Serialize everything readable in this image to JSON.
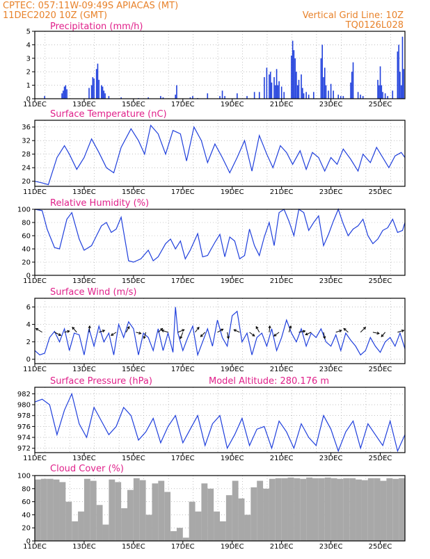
{
  "header": {
    "station": "CPTEC:   057:11W-09:49S   APIACAS (MT)",
    "run": "11DEC2020  10Z  (GMT)",
    "grid_note": "Vertical Grid Line: 10Z",
    "model": "TQ0126L028"
  },
  "x_ticks": [
    "11DEC",
    "13DEC",
    "15DEC",
    "17DEC",
    "19DEC",
    "21DEC",
    "23DEC",
    "25DEC"
  ],
  "x_tick_days": [
    11,
    13,
    15,
    17,
    19,
    21,
    23,
    25
  ],
  "x_range": [
    11.0,
    26.0
  ],
  "colors": {
    "line": "#1f3fdc",
    "bars": "#1f3fdc",
    "cloud": "#a8a8a8",
    "grid": "#9a9a9a"
  },
  "chart_data": [
    {
      "type": "bar",
      "title": "Precipitation (mm/h)",
      "ylim": [
        0,
        5
      ],
      "yticks": [
        0,
        1,
        2,
        3,
        4,
        5
      ],
      "series": [
        {
          "x": [
            11.4,
            12.1,
            12.15,
            12.2,
            12.25,
            12.3,
            13.2,
            13.3,
            13.35,
            13.4,
            13.5,
            13.55,
            13.6,
            13.7,
            13.75,
            13.8,
            13.85,
            14.0,
            14.5,
            15.2,
            15.6,
            16.1,
            16.2,
            16.7,
            16.75,
            17.3,
            17.4,
            17.6,
            18.0,
            18.5,
            18.6,
            18.7,
            19.2,
            19.6,
            19.9,
            20.1,
            20.3,
            20.4,
            20.5,
            20.55,
            20.6,
            20.7,
            20.75,
            20.8,
            20.85,
            20.9,
            21.0,
            21.1,
            21.4,
            21.45,
            21.5,
            21.55,
            21.6,
            21.65,
            21.7,
            21.8,
            21.85,
            21.9,
            22.0,
            22.1,
            22.3,
            22.6,
            22.65,
            22.7,
            22.75,
            22.8,
            22.9,
            23.0,
            23.1,
            23.3,
            23.4,
            23.5,
            23.8,
            23.85,
            23.9,
            24.1,
            24.2,
            24.3,
            24.9,
            24.95,
            25.0,
            25.05,
            25.1,
            25.2,
            25.3,
            25.5,
            25.7,
            25.75,
            25.8,
            25.85,
            25.9,
            25.95
          ],
          "values": [
            0.2,
            0.4,
            0.6,
            0.9,
            1.0,
            0.7,
            0.8,
            1.0,
            1.6,
            1.5,
            2.2,
            2.6,
            1.4,
            1.0,
            0.9,
            0.6,
            0.4,
            0.2,
            0.1,
            0.05,
            0.1,
            0.2,
            0.1,
            0.3,
            1.0,
            0.1,
            0.2,
            0.05,
            0.4,
            0.2,
            0.6,
            0.2,
            0.4,
            0.2,
            0.5,
            0.5,
            1.6,
            2.3,
            1.8,
            2.0,
            1.2,
            1.6,
            1.0,
            2.2,
            1.0,
            1.3,
            0.9,
            0.5,
            3.2,
            4.3,
            3.6,
            3.0,
            2.0,
            1.0,
            1.4,
            1.8,
            0.8,
            0.4,
            0.5,
            0.3,
            0.5,
            3.0,
            4.0,
            1.6,
            2.3,
            1.0,
            0.6,
            1.1,
            0.6,
            0.3,
            0.2,
            0.2,
            1.2,
            2.0,
            2.7,
            0.5,
            0.3,
            0.2,
            1.4,
            1.0,
            2.4,
            1.0,
            0.5,
            0.4,
            0.2,
            0.6,
            3.5,
            4.0,
            2.0,
            1.0,
            4.6,
            2.2
          ]
        }
      ]
    },
    {
      "type": "line",
      "title": "Surface Temperature (nC)",
      "ylim": [
        18.5,
        38
      ],
      "yticks": [
        20,
        24,
        28,
        32,
        36
      ],
      "series": [
        {
          "x": [
            11.0,
            11.3,
            11.55,
            11.9,
            12.2,
            12.4,
            12.7,
            13.0,
            13.3,
            13.6,
            13.9,
            14.2,
            14.5,
            14.9,
            15.2,
            15.45,
            15.7,
            16.0,
            16.3,
            16.6,
            16.9,
            17.15,
            17.45,
            17.75,
            18.0,
            18.3,
            18.6,
            18.9,
            19.2,
            19.5,
            19.8,
            20.1,
            20.4,
            20.65,
            20.95,
            21.2,
            21.45,
            21.75,
            22.0,
            22.25,
            22.5,
            22.75,
            23.0,
            23.25,
            23.5,
            23.8,
            24.1,
            24.3,
            24.6,
            24.85,
            25.1,
            25.35,
            25.6,
            25.85,
            26.0
          ],
          "values": [
            20.0,
            19.5,
            19.0,
            27.0,
            30.5,
            28.0,
            23.5,
            27.0,
            32.5,
            28.5,
            24.0,
            22.5,
            30.0,
            35.5,
            32.0,
            28.0,
            36.5,
            34.0,
            28.0,
            35.0,
            34.0,
            26.0,
            36.0,
            32.0,
            25.5,
            31.0,
            27.0,
            22.5,
            27.0,
            32.0,
            23.0,
            33.5,
            28.0,
            24.0,
            30.5,
            28.5,
            25.0,
            29.0,
            23.5,
            28.5,
            27.0,
            23.0,
            27.0,
            25.0,
            29.5,
            26.5,
            23.0,
            28.0,
            25.5,
            30.0,
            27.0,
            24.0,
            27.5,
            28.5,
            27.0
          ]
        }
      ]
    },
    {
      "type": "line",
      "title": "Relative Humidity (%)",
      "ylim": [
        0,
        100
      ],
      "yticks": [
        0,
        20,
        40,
        60,
        80,
        100
      ],
      "series": [
        {
          "x": [
            11.0,
            11.3,
            11.5,
            11.8,
            12.0,
            12.3,
            12.5,
            12.8,
            13.0,
            13.3,
            13.5,
            13.7,
            13.9,
            14.1,
            14.3,
            14.5,
            14.8,
            15.0,
            15.3,
            15.6,
            15.8,
            16.0,
            16.3,
            16.5,
            16.7,
            16.9,
            17.1,
            17.3,
            17.6,
            17.8,
            18.0,
            18.3,
            18.5,
            18.7,
            18.9,
            19.1,
            19.3,
            19.5,
            19.7,
            19.9,
            20.1,
            20.3,
            20.5,
            20.7,
            20.9,
            21.1,
            21.3,
            21.5,
            21.7,
            21.9,
            22.1,
            22.3,
            22.5,
            22.7,
            22.9,
            23.1,
            23.3,
            23.5,
            23.7,
            23.9,
            24.1,
            24.3,
            24.5,
            24.7,
            24.9,
            25.1,
            25.3,
            25.5,
            25.7,
            25.9,
            26.0
          ],
          "values": [
            100,
            98,
            70,
            42,
            40,
            85,
            95,
            55,
            38,
            45,
            60,
            75,
            80,
            65,
            70,
            88,
            22,
            20,
            25,
            38,
            22,
            28,
            48,
            55,
            40,
            52,
            25,
            38,
            63,
            28,
            30,
            50,
            62,
            28,
            58,
            52,
            25,
            30,
            70,
            45,
            30,
            58,
            80,
            45,
            95,
            100,
            82,
            60,
            100,
            95,
            68,
            80,
            90,
            45,
            62,
            82,
            100,
            78,
            60,
            70,
            75,
            85,
            60,
            48,
            55,
            68,
            72,
            85,
            65,
            68,
            80
          ]
        }
      ]
    },
    {
      "type": "line",
      "title": "Surface Wind (m/s)",
      "ylim": [
        -0.5,
        7.0
      ],
      "yticks": [
        0,
        2,
        4,
        6
      ],
      "series": [
        {
          "x": [
            11.0,
            11.2,
            11.4,
            11.6,
            11.8,
            12.0,
            12.2,
            12.4,
            12.6,
            12.8,
            13.0,
            13.2,
            13.4,
            13.6,
            13.8,
            14.0,
            14.2,
            14.4,
            14.6,
            14.8,
            15.0,
            15.2,
            15.4,
            15.6,
            15.8,
            16.0,
            16.2,
            16.4,
            16.6,
            16.7,
            16.8,
            17.0,
            17.2,
            17.4,
            17.6,
            17.8,
            18.0,
            18.2,
            18.4,
            18.6,
            18.8,
            19.0,
            19.2,
            19.4,
            19.6,
            19.8,
            20.0,
            20.2,
            20.4,
            20.6,
            20.8,
            21.0,
            21.2,
            21.4,
            21.6,
            21.8,
            22.0,
            22.2,
            22.4,
            22.6,
            22.8,
            23.0,
            23.2,
            23.4,
            23.6,
            23.8,
            24.0,
            24.2,
            24.4,
            24.6,
            24.8,
            25.0,
            25.2,
            25.4,
            25.6,
            25.8,
            26.0
          ],
          "values": [
            1.0,
            0.5,
            0.7,
            2.5,
            3.2,
            2.0,
            3.5,
            1.0,
            3.0,
            2.8,
            0.5,
            3.5,
            1.5,
            3.8,
            2.0,
            3.0,
            0.5,
            4.0,
            2.5,
            4.3,
            3.5,
            0.5,
            3.0,
            2.5,
            1.0,
            3.5,
            1.0,
            3.0,
            0.8,
            6.0,
            3.0,
            1.0,
            2.5,
            3.8,
            0.5,
            2.0,
            3.5,
            1.5,
            4.5,
            2.5,
            1.5,
            5.0,
            5.5,
            2.0,
            3.0,
            0.5,
            2.5,
            3.0,
            1.5,
            3.5,
            1.0,
            2.5,
            4.5,
            3.0,
            2.0,
            3.5,
            1.5,
            3.0,
            2.5,
            3.5,
            2.0,
            1.5,
            2.8,
            1.0,
            3.0,
            2.2,
            1.5,
            0.5,
            1.0,
            2.5,
            1.5,
            0.8,
            2.0,
            2.5,
            1.5,
            3.0,
            1.2
          ]
        }
      ],
      "vectors": [
        {
          "day": 11.3,
          "u": -1,
          "v": 0.6
        },
        {
          "day": 11.8,
          "u": 1,
          "v": -0.5
        },
        {
          "day": 12.2,
          "u": 0.8,
          "v": 0.2
        },
        {
          "day": 12.7,
          "u": -0.7,
          "v": 0.8
        },
        {
          "day": 13.2,
          "u": 0.1,
          "v": 1
        },
        {
          "day": 13.6,
          "u": 0.9,
          "v": 0.3
        },
        {
          "day": 14.3,
          "u": -0.8,
          "v": -0.5
        },
        {
          "day": 14.7,
          "u": 0.5,
          "v": 0.9
        },
        {
          "day": 15.1,
          "u": 0.8,
          "v": -0.2
        },
        {
          "day": 15.5,
          "u": -0.3,
          "v": -1
        },
        {
          "day": 16.0,
          "u": 0.7,
          "v": 0.6
        },
        {
          "day": 16.4,
          "u": -1,
          "v": 0.3
        },
        {
          "day": 16.8,
          "u": 1,
          "v": 0.4
        },
        {
          "day": 17.0,
          "u": -0.4,
          "v": -1
        },
        {
          "day": 17.5,
          "u": 0.6,
          "v": 0.8
        },
        {
          "day": 17.9,
          "u": -0.7,
          "v": -0.7
        },
        {
          "day": 18.4,
          "u": 0.9,
          "v": 0.5
        },
        {
          "day": 18.8,
          "u": 0.2,
          "v": -1
        },
        {
          "day": 19.3,
          "u": -0.9,
          "v": 0.4
        },
        {
          "day": 19.7,
          "u": 0.8,
          "v": -0.6
        },
        {
          "day": 20.1,
          "u": -0.5,
          "v": 0.9
        },
        {
          "day": 20.5,
          "u": 0.1,
          "v": 1
        },
        {
          "day": 20.9,
          "u": -0.8,
          "v": -0.6
        },
        {
          "day": 21.3,
          "u": 0.3,
          "v": 1
        },
        {
          "day": 21.7,
          "u": 1,
          "v": 0.2
        },
        {
          "day": 22.2,
          "u": -0.9,
          "v": -0.4
        },
        {
          "day": 22.7,
          "u": 0.2,
          "v": -1
        },
        {
          "day": 23.2,
          "u": 0.9,
          "v": 0.3
        },
        {
          "day": 23.7,
          "u": -0.7,
          "v": 0.6
        },
        {
          "day": 24.2,
          "u": 0.8,
          "v": 0.8
        },
        {
          "day": 24.7,
          "u": 1,
          "v": -0.2
        },
        {
          "day": 25.2,
          "u": -0.6,
          "v": -0.7
        },
        {
          "day": 25.7,
          "u": 1,
          "v": 0.3
        }
      ]
    },
    {
      "type": "line",
      "title": "Surface Pressure (hPa)",
      "subtitle": "Model Altitude: 280.176  m",
      "ylim": [
        971.2,
        983.2
      ],
      "yticks": [
        972,
        974,
        976,
        978,
        980,
        982
      ],
      "series": [
        {
          "x": [
            11.0,
            11.3,
            11.6,
            11.9,
            12.2,
            12.5,
            12.8,
            13.1,
            13.4,
            13.7,
            14.0,
            14.3,
            14.6,
            14.9,
            15.2,
            15.5,
            15.8,
            16.1,
            16.4,
            16.7,
            17.0,
            17.3,
            17.6,
            17.9,
            18.2,
            18.5,
            18.8,
            19.1,
            19.4,
            19.7,
            20.0,
            20.3,
            20.6,
            20.9,
            21.2,
            21.5,
            21.8,
            22.1,
            22.4,
            22.7,
            23.0,
            23.3,
            23.6,
            23.9,
            24.2,
            24.5,
            24.8,
            25.1,
            25.4,
            25.7,
            26.0
          ],
          "values": [
            980.5,
            981.0,
            980.0,
            974.5,
            979.0,
            982.0,
            976.5,
            974.0,
            979.5,
            977.0,
            974.5,
            976.0,
            979.5,
            978.0,
            973.5,
            975.0,
            977.5,
            973.0,
            976.0,
            978.0,
            973.0,
            975.5,
            978.0,
            972.5,
            976.5,
            978.0,
            972.0,
            974.5,
            977.5,
            972.5,
            975.5,
            976.0,
            972.0,
            977.0,
            975.0,
            972.0,
            976.5,
            974.0,
            972.5,
            978.0,
            975.5,
            971.5,
            975.0,
            977.0,
            972.0,
            976.5,
            974.5,
            972.5,
            977.0,
            971.5,
            974.5
          ]
        }
      ]
    },
    {
      "type": "bar",
      "title": "Cloud Cover (%)",
      "ylim": [
        0,
        100
      ],
      "yticks": [
        0,
        20,
        40,
        60,
        80,
        100
      ],
      "series": [
        {
          "x": [
            11.0,
            11.25,
            11.5,
            11.75,
            12.0,
            12.25,
            12.5,
            12.75,
            13.0,
            13.25,
            13.5,
            13.75,
            14.0,
            14.25,
            14.5,
            14.75,
            15.0,
            15.25,
            15.5,
            15.75,
            16.0,
            16.25,
            16.5,
            16.75,
            17.0,
            17.25,
            17.5,
            17.75,
            18.0,
            18.25,
            18.5,
            18.75,
            19.0,
            19.25,
            19.5,
            19.75,
            20.0,
            20.25,
            20.5,
            20.75,
            21.0,
            21.25,
            21.5,
            21.75,
            22.0,
            22.25,
            22.5,
            22.75,
            23.0,
            23.25,
            23.5,
            23.75,
            24.0,
            24.25,
            24.5,
            24.75,
            25.0,
            25.25,
            25.5,
            25.75
          ],
          "values": [
            94,
            95,
            95,
            94,
            90,
            60,
            30,
            45,
            95,
            92,
            55,
            25,
            94,
            90,
            50,
            78,
            96,
            93,
            40,
            88,
            92,
            75,
            15,
            20,
            5,
            60,
            45,
            88,
            80,
            45,
            30,
            70,
            92,
            65,
            40,
            82,
            92,
            80,
            95,
            96,
            96,
            97,
            96,
            95,
            97,
            96,
            96,
            97,
            96,
            95,
            96,
            96,
            94,
            93,
            96,
            96,
            92,
            96,
            95,
            96
          ]
        }
      ]
    }
  ]
}
